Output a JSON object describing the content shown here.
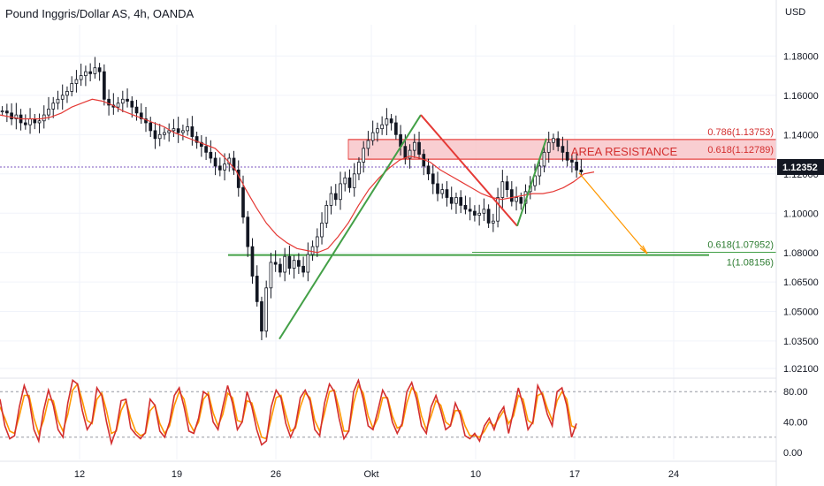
{
  "header": {
    "title": "Pound Inggris/Dollar AS, 4h, OANDA",
    "currency": "USD"
  },
  "colors": {
    "bull": "#089981",
    "bear": "#e91e63",
    "candle": "#131722",
    "ma": "#e53935",
    "green_line": "#43a047",
    "red_line": "#e53935",
    "orange": "#ff9800",
    "resistance_fill": "#f8c6c9",
    "resistance_border": "#e53935",
    "stoch_k": "#d32f2f",
    "stoch_d": "#ff9800",
    "grid": "#f0f3fa"
  },
  "chart_data": [
    {
      "type": "candlestick",
      "title": "Pound Inggris/Dollar AS, 4h, OANDA",
      "yunit": "USD",
      "ylim": [
        1.021,
        1.195
      ],
      "price_ticks": [
        "1.18000",
        "1.16000",
        "1.14000",
        "1.12000",
        "1.10000",
        "1.08000",
        "1.06500",
        "1.05000",
        "1.03500",
        "1.02100"
      ],
      "x_ticks": [
        "12",
        "19",
        "26",
        "Okt",
        "10",
        "17",
        "24"
      ],
      "last_price": "1.12352",
      "annotations": {
        "resistance_label": "AREA RESISTANCE",
        "fib_0786": "0.786(1.13753)",
        "fib_0618_top": "0.618(1.12789)",
        "fib_0618_bottom": "0.618(1.07952)",
        "fib_1": "1(1.08156)"
      },
      "resistance_zone": [
        1.1275,
        1.1375
      ],
      "support_line": 1.0787,
      "fib_line": 1.0801,
      "pattern_legs": [
        {
          "color": "green",
          "from": [
            "26",
            1.036
          ],
          "to": [
            "Okt",
            1.15
          ]
        },
        {
          "color": "red",
          "from": [
            "Okt",
            1.15
          ],
          "to": [
            "10+",
            1.0935
          ]
        },
        {
          "color": "green",
          "from": [
            "10+",
            1.0935
          ],
          "to": [
            "17-",
            1.138
          ]
        }
      ],
      "projection": {
        "from": 1.1205,
        "to": 1.0795
      },
      "candles_close": [
        1.152,
        1.151,
        1.148,
        1.15,
        1.146,
        1.145,
        1.148,
        1.146,
        1.147,
        1.15,
        1.153,
        1.156,
        1.158,
        1.16,
        1.162,
        1.166,
        1.168,
        1.17,
        1.172,
        1.171,
        1.174,
        1.172,
        1.158,
        1.155,
        1.154,
        1.156,
        1.158,
        1.157,
        1.154,
        1.151,
        1.148,
        1.146,
        1.142,
        1.138,
        1.14,
        1.141,
        1.142,
        1.143,
        1.141,
        1.142,
        1.144,
        1.139,
        1.136,
        1.134,
        1.131,
        1.128,
        1.124,
        1.122,
        1.125,
        1.128,
        1.122,
        1.113,
        1.098,
        1.083,
        1.068,
        1.055,
        1.04,
        1.062,
        1.075,
        1.074,
        1.07,
        1.078,
        1.072,
        1.076,
        1.073,
        1.07,
        1.079,
        1.083,
        1.088,
        1.095,
        1.104,
        1.11,
        1.107,
        1.115,
        1.118,
        1.113,
        1.12,
        1.126,
        1.133,
        1.137,
        1.141,
        1.143,
        1.145,
        1.148,
        1.146,
        1.14,
        1.134,
        1.128,
        1.132,
        1.136,
        1.13,
        1.124,
        1.12,
        1.115,
        1.11,
        1.112,
        1.108,
        1.105,
        1.108,
        1.104,
        1.102,
        1.101,
        1.099,
        1.1,
        1.102,
        1.095,
        1.096,
        1.108,
        1.116,
        1.112,
        1.106,
        1.108,
        1.105,
        1.111,
        1.114,
        1.119,
        1.124,
        1.131,
        1.136,
        1.138,
        1.134,
        1.131,
        1.127,
        1.126,
        1.122,
        1.121
      ],
      "ma": [
        1.15,
        1.149,
        1.148,
        1.148,
        1.148,
        1.149,
        1.151,
        1.154,
        1.156,
        1.158,
        1.157,
        1.155,
        1.152,
        1.15,
        1.148,
        1.146,
        1.144,
        1.141,
        1.139,
        1.137,
        1.135,
        1.133,
        1.128,
        1.122,
        1.112,
        1.103,
        1.095,
        1.089,
        1.085,
        1.082,
        1.081,
        1.08,
        1.082,
        1.088,
        1.095,
        1.104,
        1.112,
        1.118,
        1.123,
        1.127,
        1.129,
        1.128,
        1.126,
        1.122,
        1.119,
        1.116,
        1.113,
        1.11,
        1.108,
        1.107,
        1.108,
        1.109,
        1.11,
        1.11,
        1.111,
        1.113,
        1.116,
        1.12,
        1.121
      ],
      "stoch_ylim": [
        0,
        100
      ],
      "stoch_ticks": [
        "80.00",
        "40.00",
        "0.00"
      ],
      "stoch_levels": [
        80,
        20
      ],
      "stoch_k": [
        70,
        35,
        18,
        22,
        60,
        88,
        70,
        30,
        15,
        55,
        82,
        62,
        30,
        20,
        65,
        95,
        90,
        55,
        30,
        40,
        85,
        75,
        40,
        12,
        30,
        68,
        70,
        32,
        24,
        18,
        26,
        70,
        62,
        28,
        20,
        40,
        75,
        85,
        60,
        28,
        25,
        45,
        80,
        75,
        40,
        30,
        60,
        88,
        65,
        30,
        40,
        80,
        60,
        30,
        10,
        15,
        60,
        82,
        72,
        38,
        20,
        35,
        72,
        82,
        68,
        30,
        22,
        65,
        90,
        80,
        45,
        18,
        28,
        80,
        95,
        70,
        35,
        30,
        55,
        82,
        70,
        40,
        25,
        38,
        80,
        92,
        70,
        35,
        25,
        60,
        75,
        55,
        30,
        35,
        65,
        50,
        22,
        18,
        25,
        15,
        35,
        45,
        30,
        50,
        60,
        25,
        55,
        85,
        62,
        30,
        40,
        88,
        75,
        50,
        35,
        80,
        85,
        62,
        20,
        38
      ],
      "stoch_d": [
        60,
        45,
        28,
        25,
        48,
        75,
        75,
        45,
        25,
        42,
        70,
        68,
        42,
        28,
        50,
        82,
        90,
        68,
        42,
        38,
        70,
        78,
        55,
        25,
        28,
        55,
        68,
        45,
        28,
        22,
        25,
        55,
        62,
        38,
        25,
        35,
        62,
        80,
        70,
        40,
        28,
        40,
        70,
        78,
        52,
        35,
        50,
        78,
        72,
        42,
        40,
        68,
        65,
        42,
        20,
        18,
        45,
        72,
        75,
        50,
        28,
        32,
        60,
        78,
        72,
        42,
        28,
        52,
        80,
        82,
        58,
        28,
        28,
        65,
        88,
        78,
        48,
        32,
        45,
        72,
        72,
        48,
        32,
        35,
        65,
        85,
        78,
        48,
        30,
        48,
        68,
        62,
        40,
        35,
        55,
        55,
        35,
        22,
        22,
        20,
        28,
        40,
        35,
        45,
        55,
        38,
        48,
        75,
        70,
        42,
        38,
        75,
        78,
        58,
        42,
        68,
        80,
        70,
        35,
        32
      ]
    }
  ]
}
